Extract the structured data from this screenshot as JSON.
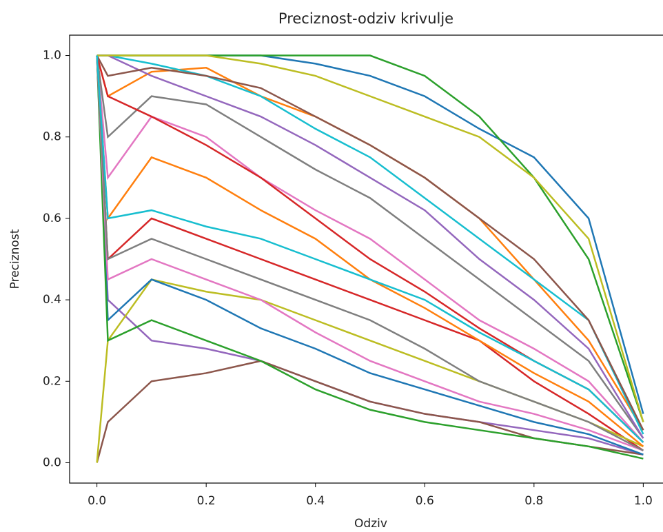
{
  "chart_data": {
    "type": "line",
    "title": "Preciznost-odziv krivulje",
    "x_label": "Odziv",
    "y_label": "Preciznost",
    "x": [
      0,
      0.02,
      0.1,
      0.2,
      0.3,
      0.4,
      0.5,
      0.6,
      0.7,
      0.8,
      0.9,
      1.0
    ],
    "xlim": [
      -0.05,
      1.05
    ],
    "ylim": [
      -0.05,
      1.05
    ],
    "xticks": [
      {
        "value": 0,
        "label": "0.0"
      },
      0.2,
      0.4,
      0.6,
      0.8,
      {
        "value": 1,
        "label": "1.0"
      }
    ],
    "yticks": [
      {
        "value": 0,
        "label": "0.0"
      },
      0.2,
      0.4,
      0.6,
      0.8,
      {
        "value": 1,
        "label": "1.0"
      }
    ],
    "grid": false,
    "series": [
      {
        "color": "#1f77b4",
        "values": [
          1,
          1,
          1,
          1,
          1,
          0.98,
          0.95,
          0.9,
          0.82,
          0.75,
          0.6,
          0.12
        ]
      },
      {
        "color": "#ff7f0e",
        "values": [
          1,
          0.9,
          0.96,
          0.97,
          0.9,
          0.85,
          0.78,
          0.7,
          0.6,
          0.45,
          0.3,
          0.08
        ]
      },
      {
        "color": "#2ca02c",
        "values": [
          1,
          1,
          1,
          1,
          1,
          1,
          1,
          0.95,
          0.85,
          0.7,
          0.5,
          0.1
        ]
      },
      {
        "color": "#d62728",
        "values": [
          1,
          0.5,
          0.6,
          0.55,
          0.5,
          0.45,
          0.4,
          0.35,
          0.3,
          0.2,
          0.12,
          0.03
        ]
      },
      {
        "color": "#9467bd",
        "values": [
          1,
          0.4,
          0.3,
          0.28,
          0.25,
          0.2,
          0.15,
          0.12,
          0.1,
          0.08,
          0.06,
          0.02
        ]
      },
      {
        "color": "#8c564b",
        "values": [
          0,
          0.1,
          0.2,
          0.22,
          0.25,
          0.2,
          0.15,
          0.12,
          0.1,
          0.06,
          0.04,
          0.02
        ]
      },
      {
        "color": "#e377c2",
        "values": [
          1,
          0.7,
          0.85,
          0.8,
          0.7,
          0.62,
          0.55,
          0.45,
          0.35,
          0.28,
          0.2,
          0.05
        ]
      },
      {
        "color": "#7f7f7f",
        "values": [
          1,
          0.8,
          0.9,
          0.88,
          0.8,
          0.72,
          0.65,
          0.55,
          0.45,
          0.35,
          0.25,
          0.06
        ]
      },
      {
        "color": "#bcbd22",
        "values": [
          0,
          0.3,
          0.45,
          0.42,
          0.4,
          0.35,
          0.3,
          0.25,
          0.2,
          0.15,
          0.1,
          0.04
        ]
      },
      {
        "color": "#17becf",
        "values": [
          1,
          1,
          0.98,
          0.95,
          0.9,
          0.82,
          0.75,
          0.65,
          0.55,
          0.45,
          0.35,
          0.07
        ]
      },
      {
        "color": "#1f77b4",
        "values": [
          1,
          0.35,
          0.45,
          0.4,
          0.33,
          0.28,
          0.22,
          0.18,
          0.14,
          0.1,
          0.07,
          0.02
        ]
      },
      {
        "color": "#ff7f0e",
        "values": [
          1,
          0.6,
          0.75,
          0.7,
          0.62,
          0.55,
          0.45,
          0.38,
          0.3,
          0.22,
          0.15,
          0.04
        ]
      },
      {
        "color": "#2ca02c",
        "values": [
          1,
          0.3,
          0.35,
          0.3,
          0.25,
          0.18,
          0.13,
          0.1,
          0.08,
          0.06,
          0.04,
          0.01
        ]
      },
      {
        "color": "#d62728",
        "values": [
          1,
          0.9,
          0.85,
          0.78,
          0.7,
          0.6,
          0.5,
          0.42,
          0.33,
          0.25,
          0.18,
          0.05
        ]
      },
      {
        "color": "#9467bd",
        "values": [
          1,
          1,
          0.95,
          0.9,
          0.85,
          0.78,
          0.7,
          0.62,
          0.5,
          0.4,
          0.28,
          0.06
        ]
      },
      {
        "color": "#8c564b",
        "values": [
          1,
          0.95,
          0.97,
          0.95,
          0.92,
          0.85,
          0.78,
          0.7,
          0.6,
          0.5,
          0.35,
          0.08
        ]
      },
      {
        "color": "#e377c2",
        "values": [
          1,
          0.45,
          0.5,
          0.45,
          0.4,
          0.32,
          0.25,
          0.2,
          0.15,
          0.12,
          0.08,
          0.03
        ]
      },
      {
        "color": "#7f7f7f",
        "values": [
          1,
          0.5,
          0.55,
          0.5,
          0.45,
          0.4,
          0.35,
          0.28,
          0.2,
          0.15,
          0.1,
          0.03
        ]
      },
      {
        "color": "#bcbd22",
        "values": [
          1,
          1,
          1,
          1,
          0.98,
          0.95,
          0.9,
          0.85,
          0.8,
          0.7,
          0.55,
          0.1
        ]
      },
      {
        "color": "#17becf",
        "values": [
          1,
          0.6,
          0.62,
          0.58,
          0.55,
          0.5,
          0.45,
          0.4,
          0.32,
          0.25,
          0.18,
          0.05
        ]
      }
    ]
  }
}
